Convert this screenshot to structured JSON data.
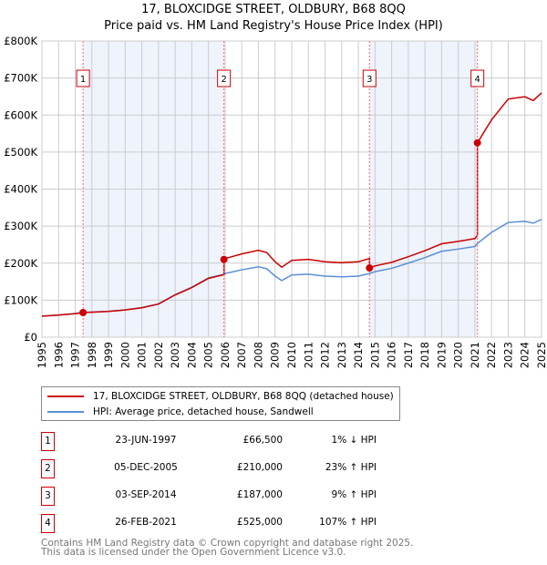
{
  "chart_data": {
    "type": "line",
    "title": "17, BLOXCIDGE STREET, OLDBURY, B68 8QQ",
    "subtitle": "Price paid vs. HM Land Registry's House Price Index (HPI)",
    "xlim": [
      1995,
      2025
    ],
    "ylim": [
      0,
      800000
    ],
    "y_ticks": [
      {
        "v": 0,
        "label": "£0"
      },
      {
        "v": 100000,
        "label": "£100K"
      },
      {
        "v": 200000,
        "label": "£200K"
      },
      {
        "v": 300000,
        "label": "£300K"
      },
      {
        "v": 400000,
        "label": "£400K"
      },
      {
        "v": 500000,
        "label": "£500K"
      },
      {
        "v": 600000,
        "label": "£600K"
      },
      {
        "v": 700000,
        "label": "£700K"
      },
      {
        "v": 800000,
        "label": "£800K"
      }
    ],
    "x_ticks": [
      "1995",
      "1996",
      "1997",
      "1998",
      "1999",
      "2000",
      "2001",
      "2002",
      "2003",
      "2004",
      "2005",
      "2006",
      "2007",
      "2008",
      "2009",
      "2010",
      "2011",
      "2012",
      "2013",
      "2014",
      "2015",
      "2016",
      "2017",
      "2018",
      "2019",
      "2020",
      "2021",
      "2022",
      "2023",
      "2024",
      "2025"
    ],
    "grid": true,
    "colors": {
      "property": "#cc0000",
      "hpi": "#5b8fd6",
      "shade": "#eef3fc"
    },
    "hpi_series": {
      "x": [
        1995,
        1996,
        1997,
        1997.47,
        1998,
        1999,
        2000,
        2001,
        2002,
        2003,
        2004,
        2005,
        2005.93,
        2006,
        2007,
        2008,
        2008.5,
        2009,
        2009.4,
        2010,
        2011,
        2012,
        2013,
        2014,
        2014.67,
        2015,
        2016,
        2017,
        2018,
        2019,
        2020,
        2021,
        2021.15,
        2022,
        2023,
        2024,
        2024.5,
        2025
      ],
      "y": [
        57000,
        60000,
        64000,
        67000,
        68000,
        70000,
        74000,
        80000,
        90000,
        115000,
        135000,
        160000,
        170000,
        172000,
        182000,
        190000,
        185000,
        165000,
        153000,
        168000,
        170000,
        165000,
        163000,
        165000,
        172000,
        177000,
        186000,
        200000,
        215000,
        232000,
        238000,
        245000,
        253000,
        283000,
        310000,
        313000,
        308000,
        318000
      ]
    },
    "sales": [
      {
        "n": "1",
        "x": 1997.47,
        "date": "23-JUN-1997",
        "price": 66500,
        "price_label": "£66,500",
        "hpi": "1% ↓ HPI"
      },
      {
        "n": "2",
        "x": 2005.93,
        "date": "05-DEC-2005",
        "price": 210000,
        "price_label": "£210,000",
        "hpi": "23% ↑ HPI"
      },
      {
        "n": "3",
        "x": 2014.67,
        "date": "03-SEP-2014",
        "price": 187000,
        "price_label": "£187,000",
        "hpi": "9% ↑ HPI"
      },
      {
        "n": "4",
        "x": 2021.15,
        "date": "26-FEB-2021",
        "price": 525000,
        "price_label": "£525,000",
        "hpi": "107% ↑ HPI"
      }
    ],
    "legend": {
      "property": "17, BLOXCIDGE STREET, OLDBURY, B68 8QQ (detached house)",
      "hpi": "HPI: Average price, detached house, Sandwell"
    }
  },
  "footer": {
    "line1": "Contains HM Land Registry data © Crown copyright and database right 2025.",
    "line2": "This data is licensed under the Open Government Licence v3.0."
  }
}
